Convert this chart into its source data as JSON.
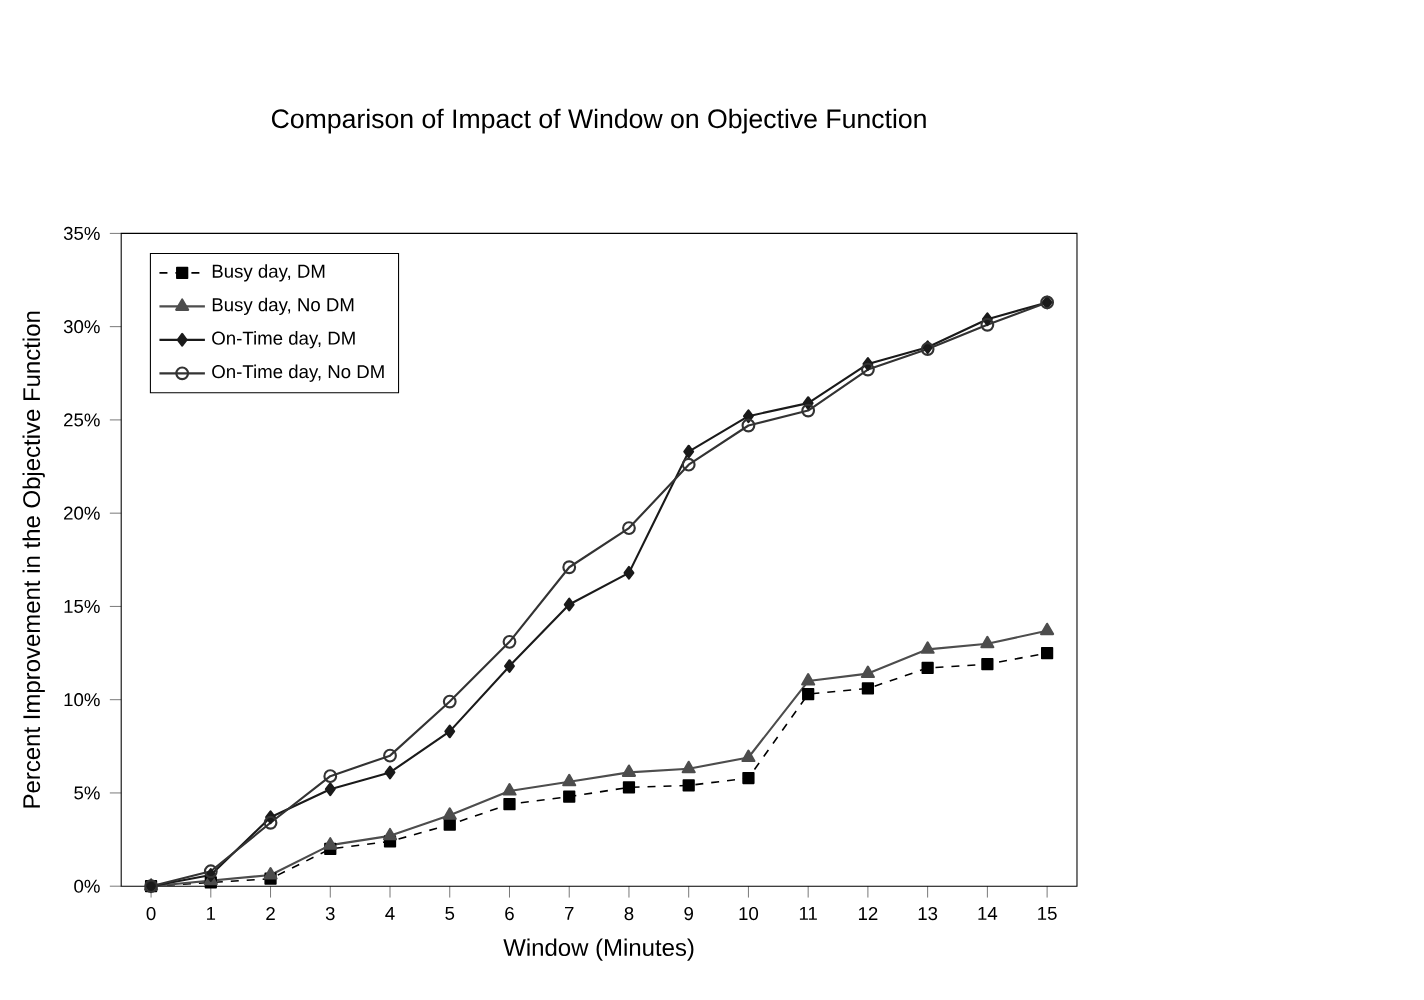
{
  "chart_data": {
    "type": "line",
    "title": "Comparison of Impact of Window on Objective Function",
    "xlabel": "Window (Minutes)",
    "ylabel": "Percent Improvement in the Objective Function",
    "x": [
      0,
      1,
      2,
      3,
      4,
      5,
      6,
      7,
      8,
      9,
      10,
      11,
      12,
      13,
      14,
      15
    ],
    "xlim": [
      -0.5,
      15.5
    ],
    "xticks": [
      0,
      1,
      2,
      3,
      4,
      5,
      6,
      7,
      8,
      9,
      10,
      11,
      12,
      13,
      14,
      15
    ],
    "ylim": [
      0,
      35
    ],
    "yticks": [
      {
        "value": 0,
        "label": "0%"
      },
      {
        "value": 5,
        "label": "5%"
      },
      {
        "value": 10,
        "label": "10%"
      },
      {
        "value": 15,
        "label": "15%"
      },
      {
        "value": 20,
        "label": "20%"
      },
      {
        "value": 25,
        "label": "25%"
      },
      {
        "value": 30,
        "label": "30%"
      },
      {
        "value": 35,
        "label": "35%"
      }
    ],
    "legend": "top left",
    "grid": false,
    "series": [
      {
        "name": "Busy day, DM",
        "color": "#000000",
        "marker": "square",
        "line_style": "dashed",
        "values": [
          0,
          0.2,
          0.4,
          2.0,
          2.4,
          3.3,
          4.4,
          4.8,
          5.3,
          5.4,
          5.8,
          10.3,
          10.6,
          11.7,
          11.9,
          12.5
        ]
      },
      {
        "name": "Busy day, No DM",
        "color": "#4d4d4d",
        "marker": "triangle",
        "line_style": "solid",
        "values": [
          0,
          0.3,
          0.6,
          2.2,
          2.7,
          3.8,
          5.1,
          5.6,
          6.1,
          6.3,
          6.9,
          11.0,
          11.4,
          12.7,
          13.0,
          13.7
        ]
      },
      {
        "name": "On-Time day, DM",
        "color": "#1a1a1a",
        "marker": "diamond",
        "line_style": "solid",
        "values": [
          0,
          0.6,
          3.7,
          5.2,
          6.1,
          8.3,
          11.8,
          15.1,
          16.8,
          23.3,
          25.2,
          25.9,
          28.0,
          28.9,
          30.4,
          31.3
        ]
      },
      {
        "name": "On-Time day, No DM",
        "color": "#333333",
        "marker": "circle",
        "line_style": "solid",
        "values": [
          0,
          0.8,
          3.4,
          5.9,
          7.0,
          9.9,
          13.1,
          17.1,
          19.2,
          22.6,
          24.7,
          25.5,
          27.7,
          28.8,
          30.1,
          31.3
        ]
      }
    ]
  }
}
